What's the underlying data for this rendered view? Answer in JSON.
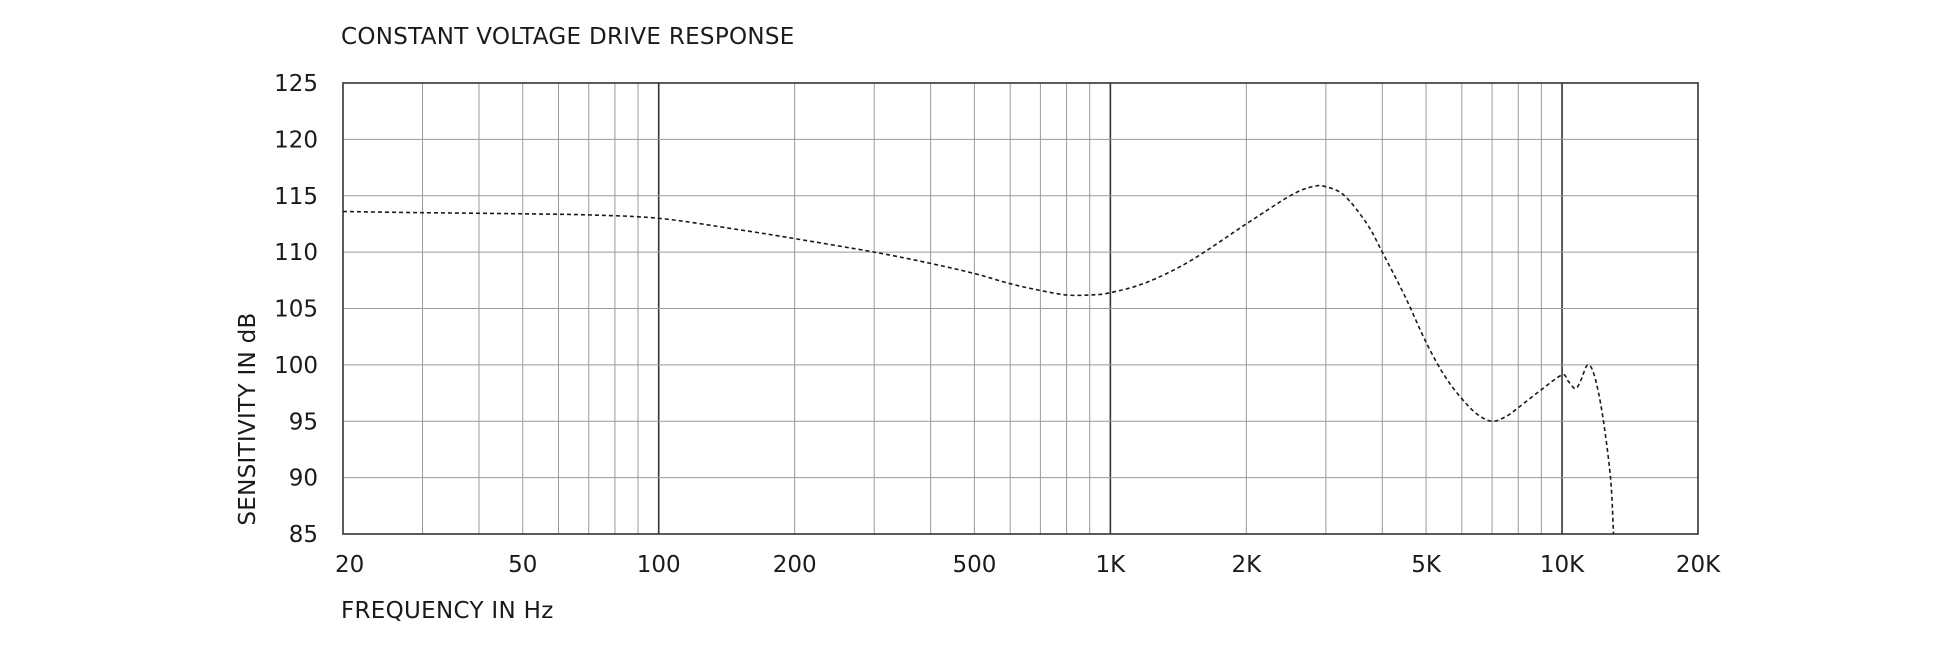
{
  "chart_data": {
    "type": "line",
    "title": "CONSTANT VOLTAGE DRIVE RESPONSE",
    "xlabel": "FREQUENCY IN Hz",
    "ylabel": "SENSITIVITY IN dB",
    "x_scale": "log",
    "xlim": [
      20,
      20000
    ],
    "ylim": [
      85,
      125
    ],
    "grid": true,
    "x_ticks": [
      {
        "value": 20,
        "label": "20"
      },
      {
        "value": 50,
        "label": "50"
      },
      {
        "value": 100,
        "label": "100"
      },
      {
        "value": 200,
        "label": "200"
      },
      {
        "value": 500,
        "label": "500"
      },
      {
        "value": 1000,
        "label": "1K"
      },
      {
        "value": 2000,
        "label": "2K"
      },
      {
        "value": 5000,
        "label": "5K"
      },
      {
        "value": 10000,
        "label": "10K"
      },
      {
        "value": 20000,
        "label": "20K"
      }
    ],
    "y_ticks": [
      125,
      120,
      115,
      110,
      105,
      100,
      95,
      90,
      85
    ],
    "series": [
      {
        "style": "dashed",
        "color": "#1a1a1a",
        "points": [
          [
            20,
            113.6
          ],
          [
            30,
            113.5
          ],
          [
            50,
            113.4
          ],
          [
            70,
            113.3
          ],
          [
            100,
            113.0
          ],
          [
            150,
            112.0
          ],
          [
            200,
            111.2
          ],
          [
            300,
            110.0
          ],
          [
            400,
            109.0
          ],
          [
            500,
            108.1
          ],
          [
            600,
            107.2
          ],
          [
            700,
            106.6
          ],
          [
            800,
            106.2
          ],
          [
            900,
            106.2
          ],
          [
            1000,
            106.4
          ],
          [
            1200,
            107.3
          ],
          [
            1500,
            109.2
          ],
          [
            2000,
            112.5
          ],
          [
            2500,
            115.0
          ],
          [
            2800,
            115.8
          ],
          [
            3000,
            115.8
          ],
          [
            3300,
            115.0
          ],
          [
            3700,
            112.5
          ],
          [
            4000,
            110.0
          ],
          [
            4500,
            106.0
          ],
          [
            5000,
            102.0
          ],
          [
            5500,
            99.0
          ],
          [
            6000,
            97.0
          ],
          [
            6500,
            95.6
          ],
          [
            7000,
            95.0
          ],
          [
            7500,
            95.4
          ],
          [
            8000,
            96.2
          ],
          [
            9000,
            97.8
          ],
          [
            10000,
            99.1
          ],
          [
            10300,
            98.6
          ],
          [
            10700,
            97.9
          ],
          [
            11000,
            98.6
          ],
          [
            11400,
            100.0
          ],
          [
            11800,
            99.0
          ],
          [
            12300,
            95.5
          ],
          [
            12800,
            90.0
          ],
          [
            13000,
            85.0
          ]
        ]
      }
    ]
  }
}
